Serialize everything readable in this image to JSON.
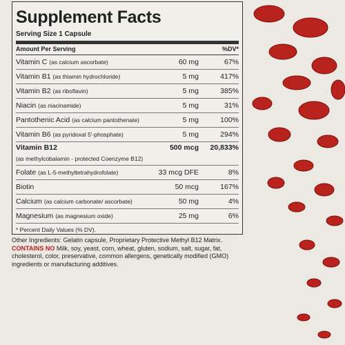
{
  "header": {
    "title": "Supplement Facts",
    "serving_size": "Serving Size 1 Capsule",
    "amount_label": "Amount Per Serving",
    "dv_label": "%DV*"
  },
  "table": {
    "rows": [
      {
        "name": "Vitamin C",
        "note": "(as calcium ascorbate)",
        "amount": "60 mg",
        "dv": "67%"
      },
      {
        "name": "Vitamin B1",
        "note": "(as thiamin hydrochloride)",
        "amount": "5 mg",
        "dv": "417%"
      },
      {
        "name": "Vitamin B2",
        "note": "(as riboflavin)",
        "amount": "5 mg",
        "dv": "385%"
      },
      {
        "name": "Niacin",
        "note": "(as niacinamide)",
        "amount": "5 mg",
        "dv": "31%"
      },
      {
        "name": "Pantothenic Acid",
        "note": "(as calcium pantothenate)",
        "amount": "5 mg",
        "dv": "100%"
      },
      {
        "name": "Vitamin B6",
        "note": "(as pyridoxal 5'-phosphate)",
        "amount": "5 mg",
        "dv": "294%"
      },
      {
        "name": "Vitamin B12",
        "note": "(as methylcobalamin - protected Coenzyme B12)",
        "amount": "500 mcg",
        "dv": "20,833%"
      },
      {
        "name": "Folate",
        "note": "(as L-5-methyltetrahydrofolate)",
        "amount": "33 mcg DFE",
        "dv": "8%"
      },
      {
        "name": "Biotin",
        "note": "",
        "amount": "50 mcg",
        "dv": "167%"
      },
      {
        "name": "Calcium",
        "note": "(as calcium carbonate/ ascorbate)",
        "amount": "50 mg",
        "dv": "4%"
      },
      {
        "name": "Magnesium",
        "note": "(as magnesium oxide)",
        "amount": "25 mg",
        "dv": "6%"
      }
    ],
    "footnote": "* Percent Daily Values (% DV)."
  },
  "other_ingredients": "Other Ingredients: Gelatin capsule, Proprietary Protective Methyl B12 Matrix.",
  "contains_no": {
    "label": "CONTAINS NO",
    "text": "Milk, soy, yeast, corn, wheat, gluten, sodium, salt, sugar, fat, cholesterol, color, preservative, common allergens, genetically modified (GMO) ingredients or manufacturing additives."
  }
}
